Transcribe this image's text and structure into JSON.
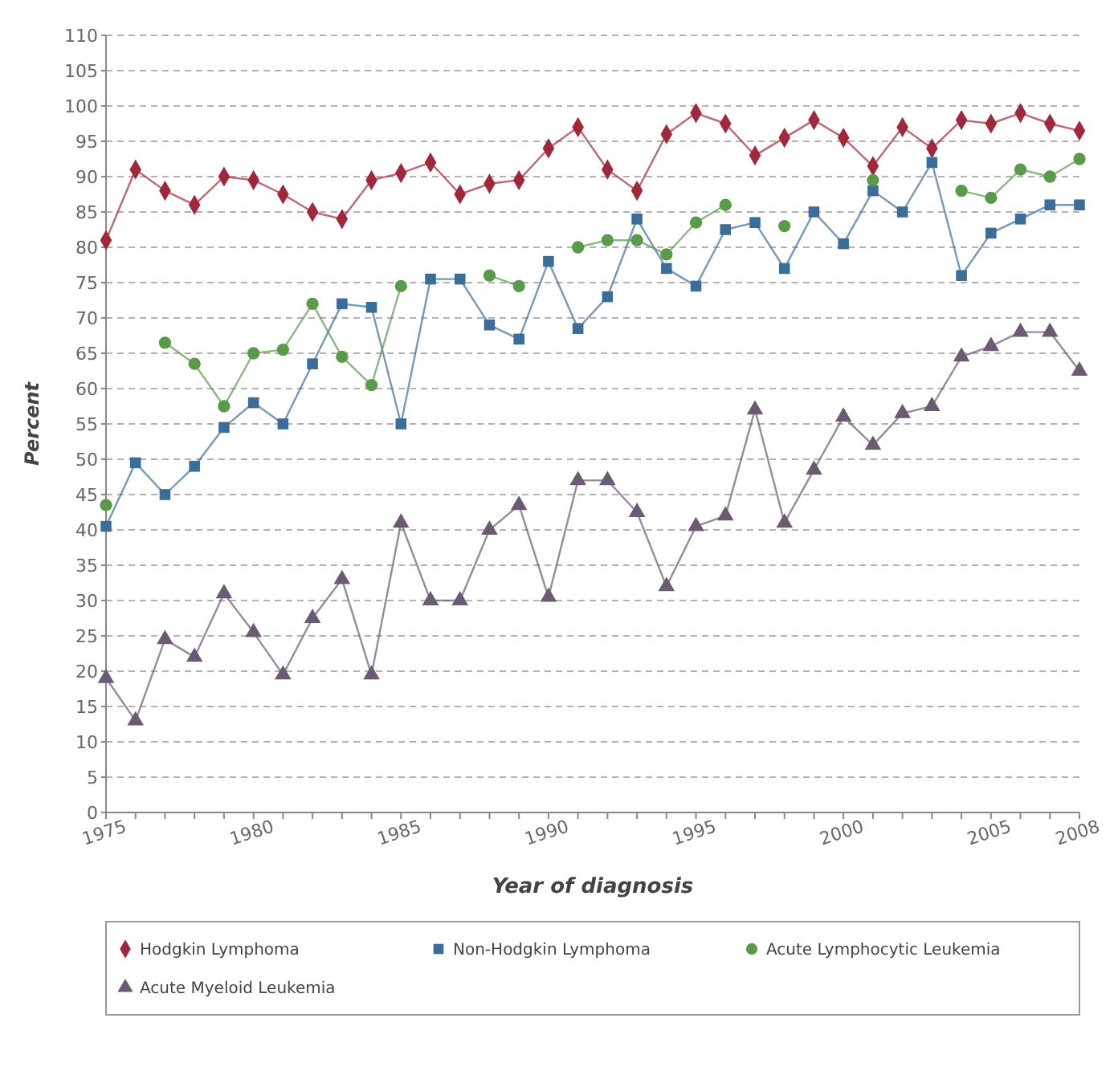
{
  "chart_data": {
    "type": "line",
    "xlabel": "Year of diagnosis",
    "ylabel": "Percent",
    "x": [
      1975,
      1976,
      1977,
      1978,
      1979,
      1980,
      1981,
      1982,
      1983,
      1984,
      1985,
      1986,
      1987,
      1988,
      1989,
      1990,
      1991,
      1992,
      1993,
      1994,
      1995,
      1996,
      1997,
      1998,
      1999,
      2000,
      2001,
      2002,
      2003,
      2004,
      2005,
      2006,
      2007,
      2008
    ],
    "series": [
      {
        "name": "Hodgkin Lymphoma",
        "color": "#a0283c",
        "marker": "diamond",
        "values": [
          81,
          91,
          88,
          86,
          90,
          89.5,
          87.5,
          85,
          84,
          89.5,
          90.5,
          92,
          87.5,
          89,
          89.5,
          94,
          97,
          91,
          88,
          96,
          99,
          97.5,
          93,
          95.5,
          98,
          95.5,
          91.5,
          97,
          94,
          98,
          97.5,
          99,
          97.5,
          96.5
        ]
      },
      {
        "name": "Non-Hodgkin Lymphoma",
        "color": "#3a6d9a",
        "marker": "square",
        "values": [
          40.5,
          49.5,
          45,
          49,
          54.5,
          58,
          55,
          63.5,
          72,
          71.5,
          55,
          75.5,
          75.5,
          69,
          67,
          78,
          68.5,
          73,
          84,
          77,
          74.5,
          82.5,
          83.5,
          77,
          85,
          80.5,
          88,
          85,
          92,
          76,
          82,
          84,
          86,
          86
        ]
      },
      {
        "name": "Acute Lymphocytic Leukemia",
        "color": "#5a9a4a",
        "marker": "circle",
        "values": [
          43.5,
          null,
          66.5,
          63.5,
          57.5,
          65,
          65.5,
          72,
          64.5,
          60.5,
          74.5,
          null,
          null,
          76,
          74.5,
          null,
          80,
          81,
          81,
          79,
          83.5,
          86,
          null,
          83,
          null,
          null,
          89.5,
          null,
          null,
          88,
          87,
          91,
          90,
          92.5
        ]
      },
      {
        "name": "Acute Myeloid Leukemia",
        "color": "#6a5a72",
        "marker": "triangle",
        "values": [
          19,
          13,
          24.5,
          22,
          31,
          25.5,
          19.5,
          27.5,
          33,
          19.5,
          41,
          30,
          30,
          40,
          43.5,
          30.5,
          47,
          47,
          42.5,
          32,
          40.5,
          42,
          57,
          41,
          48.5,
          56,
          52,
          56.5,
          57.5,
          64.5,
          66,
          68,
          68,
          62.5
        ]
      }
    ],
    "xlim": [
      1975,
      2008
    ],
    "xticks": [
      1975,
      {
        "value": 1976,
        "label": null
      },
      {
        "value": 1977,
        "label": null
      },
      {
        "value": 1978,
        "label": null
      },
      {
        "value": 1979,
        "label": null
      },
      1980,
      {
        "value": 1981,
        "label": null
      },
      {
        "value": 1982,
        "label": null
      },
      {
        "value": 1983,
        "label": null
      },
      {
        "value": 1984,
        "label": null
      },
      1985,
      {
        "value": 1986,
        "label": null
      },
      {
        "value": 1987,
        "label": null
      },
      {
        "value": 1988,
        "label": null
      },
      {
        "value": 1989,
        "label": null
      },
      1990,
      {
        "value": 1991,
        "label": null
      },
      {
        "value": 1992,
        "label": null
      },
      {
        "value": 1993,
        "label": null
      },
      {
        "value": 1994,
        "label": null
      },
      1995,
      {
        "value": 1996,
        "label": null
      },
      {
        "value": 1997,
        "label": null
      },
      {
        "value": 1998,
        "label": null
      },
      {
        "value": 1999,
        "label": null
      },
      2000,
      {
        "value": 2001,
        "label": null
      },
      {
        "value": 2002,
        "label": null
      },
      {
        "value": 2003,
        "label": null
      },
      {
        "value": 2004,
        "label": null
      },
      2005,
      {
        "value": 2006,
        "label": null
      },
      {
        "value": 2007,
        "label": null
      },
      2008
    ],
    "ylim": [
      0,
      110
    ],
    "yticks": [
      0,
      5,
      10,
      15,
      20,
      25,
      30,
      35,
      40,
      45,
      50,
      55,
      60,
      65,
      70,
      75,
      80,
      85,
      90,
      95,
      100,
      105,
      110
    ],
    "grid": "y",
    "legend": "bottom",
    "line_style": "solid"
  }
}
